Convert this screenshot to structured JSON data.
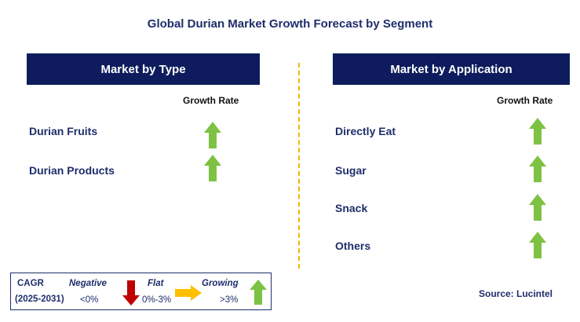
{
  "chart_data": {
    "type": "table",
    "title": "Global Durian Market Growth Forecast by Segment",
    "panels": [
      {
        "header": "Market by Type",
        "column_label": "Growth Rate",
        "rows": [
          {
            "label": "Durian Fruits",
            "trend": "growing"
          },
          {
            "label": "Durian Products",
            "trend": "growing"
          }
        ]
      },
      {
        "header": "Market by Application",
        "column_label": "Growth Rate",
        "rows": [
          {
            "label": "Directly Eat",
            "trend": "growing"
          },
          {
            "label": "Sugar",
            "trend": "growing"
          },
          {
            "label": "Snack",
            "trend": "growing"
          },
          {
            "label": "Others",
            "trend": "growing"
          }
        ]
      }
    ],
    "legend": {
      "cagr_label": "CAGR",
      "period": "(2025-2031)",
      "negative": {
        "label": "Negative",
        "range": "<0%"
      },
      "flat": {
        "label": "Flat",
        "range": "0%-3%"
      },
      "growing": {
        "label": "Growing",
        "range": ">3%"
      }
    },
    "source": "Source: Lucintel"
  },
  "colors": {
    "header_bg": "#0e1c5e",
    "text": "#1f2d6b",
    "growing": "#7dc243",
    "negative": "#c00000",
    "flat": "#ffc000",
    "divider": "#f2b705"
  }
}
